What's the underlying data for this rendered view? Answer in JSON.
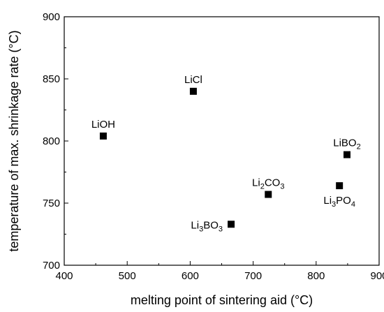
{
  "chart_data": {
    "type": "scatter",
    "title": "",
    "xlabel": "melting point of sintering aid (°C)",
    "ylabel": "temperature of max. shrinkage rate (°C)",
    "xlim": [
      400,
      900
    ],
    "ylim": [
      700,
      900
    ],
    "x_ticks": [
      400,
      500,
      600,
      700,
      800,
      900
    ],
    "y_ticks": [
      700,
      750,
      800,
      850,
      900
    ],
    "grid": false,
    "legend": "none",
    "marker": "square",
    "marker_color": "#000000",
    "points": [
      {
        "label": [
          {
            "t": "LiCl",
            "sub": false
          }
        ],
        "x": 605,
        "y": 840,
        "label_position": "above"
      },
      {
        "label": [
          {
            "t": "LiOH",
            "sub": false
          }
        ],
        "x": 462,
        "y": 804,
        "label_position": "above"
      },
      {
        "label": [
          {
            "t": "LiBO",
            "sub": false
          },
          {
            "t": "2",
            "sub": true
          }
        ],
        "x": 849,
        "y": 789,
        "label_position": "above"
      },
      {
        "label": [
          {
            "t": "Li",
            "sub": false
          },
          {
            "t": "2",
            "sub": true
          },
          {
            "t": "CO",
            "sub": false
          },
          {
            "t": "3",
            "sub": true
          }
        ],
        "x": 724,
        "y": 757,
        "label_position": "above"
      },
      {
        "label": [
          {
            "t": "Li",
            "sub": false
          },
          {
            "t": "3",
            "sub": true
          },
          {
            "t": "PO",
            "sub": false
          },
          {
            "t": "4",
            "sub": true
          }
        ],
        "x": 837,
        "y": 764,
        "label_position": "below"
      },
      {
        "label": [
          {
            "t": "Li",
            "sub": false
          },
          {
            "t": "3",
            "sub": true
          },
          {
            "t": "BO",
            "sub": false
          },
          {
            "t": "3",
            "sub": true
          }
        ],
        "x": 665,
        "y": 733,
        "label_position": "left"
      }
    ]
  }
}
